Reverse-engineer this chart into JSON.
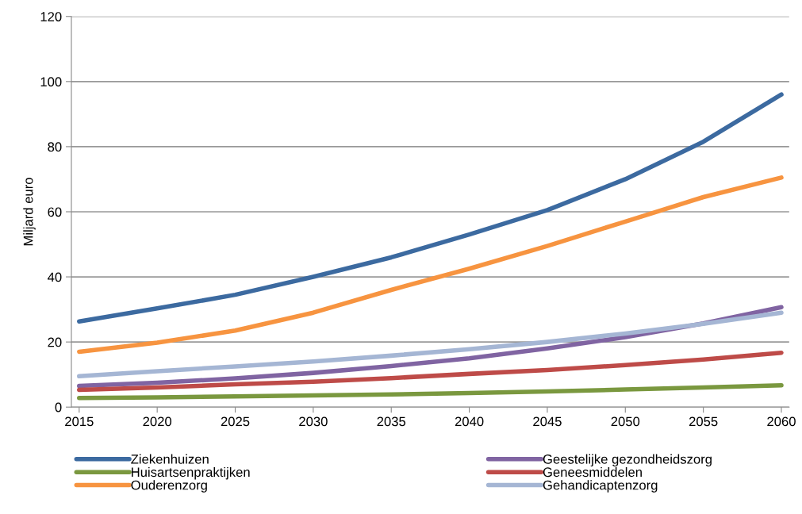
{
  "chart_data": {
    "type": "line",
    "ylabel": "Miljard euro",
    "x": [
      2015,
      2020,
      2025,
      2030,
      2035,
      2040,
      2045,
      2050,
      2055,
      2060
    ],
    "xlim": [
      2014.5,
      2060.5
    ],
    "xticks": [
      2015,
      2020,
      2025,
      2030,
      2035,
      2040,
      2045,
      2050,
      2055,
      2060
    ],
    "ylim": [
      0,
      120
    ],
    "yticks": [
      0,
      20,
      40,
      60,
      80,
      100,
      120
    ],
    "grid": "y",
    "legend": "bottom",
    "marker": "none",
    "line_style": "solid",
    "series": [
      {
        "name": "Ziekenhuizen",
        "color": "#3c6aa0",
        "values": [
          26.3,
          30.3,
          34.5,
          40,
          46,
          53,
          60.5,
          70,
          81.5,
          96
        ]
      },
      {
        "name": "Huisartsenpraktijken",
        "color": "#7a983f",
        "values": [
          2.8,
          3.0,
          3.3,
          3.6,
          3.9,
          4.3,
          4.8,
          5.4,
          6.0,
          6.7
        ]
      },
      {
        "name": "Ouderenzorg",
        "color": "#f79440",
        "values": [
          17,
          19.8,
          23.5,
          29,
          36,
          42.5,
          49.5,
          57,
          64.5,
          70.5
        ]
      },
      {
        "name": "Geestelijke gezondheidszorg",
        "color": "#8064a2",
        "values": [
          6.5,
          7.5,
          8.8,
          10.5,
          12.6,
          15,
          18,
          21.5,
          25.7,
          30.7
        ]
      },
      {
        "name": "Geneesmiddelen",
        "color": "#be4b48",
        "values": [
          5.3,
          6.0,
          7.0,
          7.8,
          8.9,
          10.2,
          11.4,
          12.9,
          14.6,
          16.7
        ]
      },
      {
        "name": "Gehandicaptenzorg",
        "color": "#a5b6d4",
        "values": [
          9.5,
          11,
          12.5,
          14,
          15.8,
          17.8,
          20,
          22.6,
          25.6,
          29
        ]
      }
    ]
  }
}
